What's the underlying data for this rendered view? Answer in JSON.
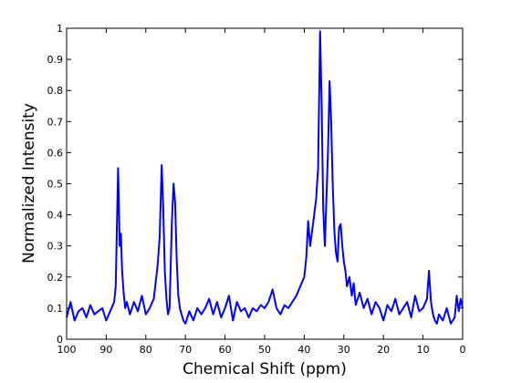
{
  "chart_data": {
    "type": "line",
    "title": "",
    "xlabel": "Chemical Shift (ppm)",
    "ylabel": "Normalized Intensity",
    "xlim": [
      100,
      0
    ],
    "ylim": [
      0,
      1
    ],
    "x_reversed": true,
    "x_ticks": [
      100,
      90,
      80,
      70,
      60,
      50,
      40,
      30,
      20,
      10,
      0
    ],
    "y_ticks": [
      0,
      0.1,
      0.2,
      0.3,
      0.4,
      0.5,
      0.6,
      0.7,
      0.8,
      0.9,
      1
    ],
    "x_tick_labels": [
      "100",
      "90",
      "80",
      "70",
      "60",
      "50",
      "40",
      "30",
      "20",
      "10",
      "0"
    ],
    "y_tick_labels": [
      "0",
      "0.1",
      "0.2",
      "0.3",
      "0.4",
      "0.5",
      "0.6",
      "0.7",
      "0.8",
      "0.9",
      "1"
    ],
    "grid": false,
    "series": [
      {
        "color": "#0000ff",
        "x": [
          100,
          99,
          98,
          97,
          96,
          95,
          94,
          93,
          92,
          91,
          90,
          89,
          88,
          87.6,
          87,
          86.6,
          86.3,
          86,
          85.6,
          85.2,
          84.8,
          84,
          83,
          82,
          81,
          80,
          79,
          78,
          77,
          76.5,
          76,
          75.6,
          75.2,
          74.8,
          74.4,
          74,
          73.4,
          73,
          72.6,
          72.2,
          71.8,
          71.4,
          71,
          70.5,
          70,
          69,
          68,
          67,
          66,
          65,
          64,
          63,
          62,
          61,
          60,
          59,
          58,
          57,
          56,
          55,
          54,
          53,
          52,
          51,
          50,
          49,
          48,
          47,
          46,
          45,
          44,
          43,
          42,
          41,
          40,
          39.5,
          39,
          38.5,
          38,
          37.5,
          37,
          36.5,
          36,
          35.6,
          35.2,
          34.8,
          34.4,
          34,
          33.6,
          33.2,
          32.8,
          32.4,
          32,
          31.6,
          31.2,
          30.8,
          30.4,
          30,
          29.6,
          29.2,
          28.6,
          28,
          27.5,
          27,
          26,
          25,
          24,
          23,
          22,
          21,
          20,
          19,
          18,
          17,
          16,
          15,
          14,
          13,
          12,
          11,
          10,
          9,
          8.5,
          8,
          7.5,
          7,
          6.5,
          6,
          5,
          4,
          3,
          2,
          1.5,
          1,
          0.5,
          0
        ],
        "y": [
          0.07,
          0.12,
          0.06,
          0.09,
          0.1,
          0.07,
          0.11,
          0.08,
          0.09,
          0.1,
          0.06,
          0.09,
          0.12,
          0.17,
          0.55,
          0.3,
          0.34,
          0.22,
          0.15,
          0.1,
          0.12,
          0.08,
          0.12,
          0.09,
          0.14,
          0.08,
          0.1,
          0.13,
          0.24,
          0.33,
          0.56,
          0.42,
          0.22,
          0.13,
          0.08,
          0.1,
          0.38,
          0.5,
          0.44,
          0.25,
          0.14,
          0.1,
          0.08,
          0.06,
          0.05,
          0.09,
          0.06,
          0.1,
          0.08,
          0.1,
          0.13,
          0.08,
          0.12,
          0.07,
          0.1,
          0.14,
          0.06,
          0.12,
          0.09,
          0.1,
          0.07,
          0.1,
          0.09,
          0.11,
          0.1,
          0.12,
          0.16,
          0.1,
          0.08,
          0.11,
          0.1,
          0.12,
          0.14,
          0.17,
          0.2,
          0.26,
          0.38,
          0.3,
          0.35,
          0.4,
          0.45,
          0.55,
          0.99,
          0.75,
          0.42,
          0.3,
          0.45,
          0.6,
          0.83,
          0.7,
          0.5,
          0.35,
          0.28,
          0.25,
          0.36,
          0.37,
          0.3,
          0.25,
          0.22,
          0.17,
          0.2,
          0.14,
          0.18,
          0.11,
          0.15,
          0.1,
          0.13,
          0.08,
          0.12,
          0.1,
          0.06,
          0.11,
          0.09,
          0.13,
          0.08,
          0.1,
          0.12,
          0.07,
          0.14,
          0.09,
          0.1,
          0.13,
          0.22,
          0.12,
          0.08,
          0.06,
          0.05,
          0.08,
          0.06,
          0.1,
          0.05,
          0.07,
          0.14,
          0.09,
          0.13,
          0.1
        ]
      }
    ]
  }
}
